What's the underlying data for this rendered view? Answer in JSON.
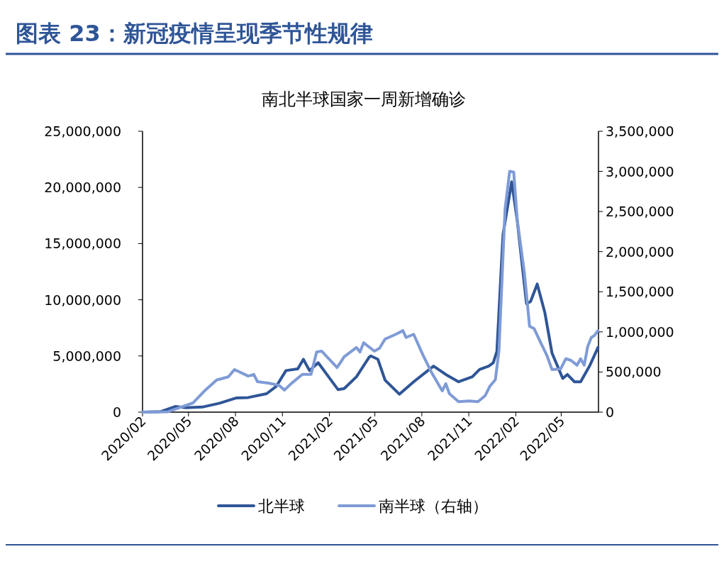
{
  "chart_data": {
    "type": "line",
    "title": "图表 23：新冠疫情呈现季节性规律",
    "subtitle": "南北半球国家一周新增确诊",
    "xlim": [
      "2020-02-01",
      "2022-07-13"
    ],
    "xticks": [
      {
        "value": "2020-02-01",
        "label": "2020/02"
      },
      {
        "value": "2020-05-01",
        "label": "2020/05"
      },
      {
        "value": "2020-08-01",
        "label": "2020/08"
      },
      {
        "value": "2020-11-01",
        "label": "2020/11"
      },
      {
        "value": "2021-02-01",
        "label": "2021/02"
      },
      {
        "value": "2021-05-01",
        "label": "2021/05"
      },
      {
        "value": "2021-08-01",
        "label": "2021/08"
      },
      {
        "value": "2021-11-01",
        "label": "2021/11"
      },
      {
        "value": "2022-02-01",
        "label": "2022/02"
      },
      {
        "value": "2022-05-01",
        "label": "2022/05"
      }
    ],
    "ylim": [
      0,
      25000000
    ],
    "yticks": [
      0,
      {
        "value": 5000000,
        "label": "5,000,000"
      },
      {
        "value": 10000000,
        "label": "10,000,000"
      },
      {
        "value": 15000000,
        "label": "15,000,000"
      },
      {
        "value": 20000000,
        "label": "20,000,000"
      },
      {
        "value": 25000000,
        "label": "25,000,000"
      }
    ],
    "y2lim": [
      0,
      3500000
    ],
    "y2ticks": [
      0,
      {
        "value": 500000,
        "label": "500,000"
      },
      {
        "value": 1000000,
        "label": "1,000,000"
      },
      {
        "value": 1500000,
        "label": "1,500,000"
      },
      {
        "value": 2000000,
        "label": "2,000,000"
      },
      {
        "value": 2500000,
        "label": "2,500,000"
      },
      {
        "value": 3000000,
        "label": "3,000,000"
      },
      {
        "value": 3500000,
        "label": "3,500,000"
      }
    ],
    "legend": "bottom",
    "grid": false,
    "line_style": "solid",
    "series": [
      {
        "name": "北半球",
        "color": "#2f5597",
        "x": [
          "2020-02-01",
          "2020-03-08",
          "2020-04-05",
          "2020-04-26",
          "2020-05-28",
          "2020-07-01",
          "2020-08-02",
          "2020-08-26",
          "2020-10-01",
          "2020-10-20",
          "2020-11-08",
          "2020-12-01",
          "2020-12-12",
          "2020-12-24",
          "2021-01-10",
          "2021-01-27",
          "2021-02-18",
          "2021-03-02",
          "2021-03-26",
          "2021-04-20",
          "2021-04-23",
          "2021-05-07",
          "2021-05-21",
          "2021-06-18",
          "2021-07-16",
          "2021-08-24",
          "2021-09-17",
          "2021-10-12",
          "2021-11-08",
          "2021-11-22",
          "2021-12-10",
          "2021-12-19",
          "2021-12-26",
          "2022-01-07",
          "2022-01-24",
          "2022-02-04",
          "2022-02-22",
          "2022-03-02",
          "2022-03-15",
          "2022-03-30",
          "2022-04-13",
          "2022-05-04",
          "2022-05-13",
          "2022-05-27",
          "2022-06-08",
          "2022-06-26",
          "2022-07-12"
        ],
        "values": [
          0,
          50000,
          500000,
          400000,
          450000,
          800000,
          1260000,
          1300000,
          1640000,
          2300000,
          3700000,
          3850000,
          4700000,
          3700000,
          4400000,
          3350000,
          2000000,
          2100000,
          3150000,
          4900000,
          5000000,
          4700000,
          2850000,
          1600000,
          2700000,
          4100000,
          3350000,
          2700000,
          3150000,
          3800000,
          4100000,
          4400000,
          5400000,
          15800000,
          20500000,
          17000000,
          9650000,
          9850000,
          11400000,
          8850000,
          5250000,
          3000000,
          3350000,
          2700000,
          2700000,
          4150000,
          5750000
        ]
      },
      {
        "name": "南半球（右轴）",
        "color": "#7f9bd6",
        "axis": "y2",
        "x": [
          "2020-02-01",
          "2020-03-22",
          "2020-05-10",
          "2020-06-03",
          "2020-06-25",
          "2020-07-18",
          "2020-07-30",
          "2020-08-26",
          "2020-09-06",
          "2020-09-13",
          "2020-10-06",
          "2020-10-25",
          "2020-11-05",
          "2020-11-18",
          "2020-12-10",
          "2020-12-27",
          "2021-01-07",
          "2021-01-17",
          "2021-01-31",
          "2021-02-16",
          "2021-03-02",
          "2021-03-26",
          "2021-04-02",
          "2021-04-09",
          "2021-04-30",
          "2021-05-10",
          "2021-05-21",
          "2021-06-11",
          "2021-06-25",
          "2021-07-01",
          "2021-07-16",
          "2021-08-03",
          "2021-08-20",
          "2021-09-10",
          "2021-09-17",
          "2021-09-24",
          "2021-10-12",
          "2021-11-02",
          "2021-11-19",
          "2021-12-03",
          "2021-12-12",
          "2021-12-23",
          "2021-12-30",
          "2022-01-11",
          "2022-01-20",
          "2022-01-28",
          "2022-02-04",
          "2022-02-18",
          "2022-02-28",
          "2022-03-09",
          "2022-03-23",
          "2022-04-03",
          "2022-04-13",
          "2022-04-30",
          "2022-05-10",
          "2022-05-20",
          "2022-06-01",
          "2022-06-08",
          "2022-06-15",
          "2022-06-22",
          "2022-06-29",
          "2022-07-05",
          "2022-07-12"
        ],
        "values": [
          0,
          5000,
          115000,
          275000,
          400000,
          440000,
          530000,
          450000,
          470000,
          380000,
          360000,
          335000,
          275000,
          355000,
          470000,
          470000,
          750000,
          760000,
          665000,
          555000,
          690000,
          805000,
          750000,
          865000,
          760000,
          795000,
          910000,
          970000,
          1015000,
          930000,
          970000,
          715000,
          495000,
          265000,
          355000,
          230000,
          130000,
          140000,
          130000,
          205000,
          320000,
          405000,
          760000,
          2530000,
          3000000,
          2990000,
          2390000,
          1730000,
          1070000,
          1040000,
          850000,
          705000,
          530000,
          540000,
          665000,
          645000,
          585000,
          665000,
          585000,
          820000,
          930000,
          955000,
          1015000
        ]
      }
    ]
  }
}
